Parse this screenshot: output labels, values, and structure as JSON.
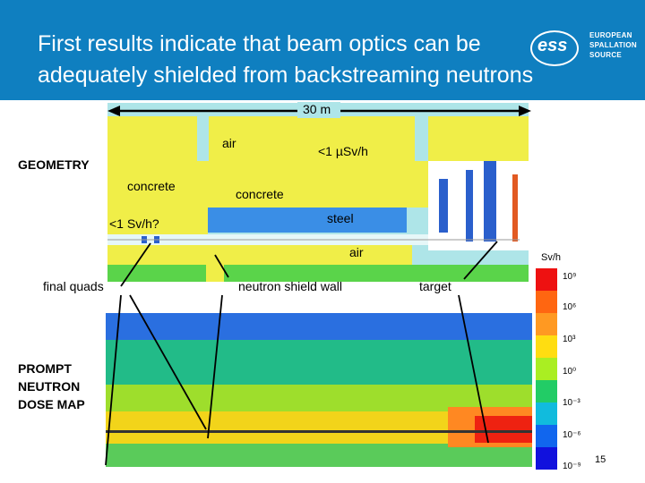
{
  "header": {
    "title": "First results indicate that beam optics can be adequately shielded from backstreaming neutrons",
    "logo": {
      "letters": "ess",
      "text_lines": [
        "EUROPEAN",
        "SPALLATION",
        "SOURCE"
      ]
    }
  },
  "geometry": {
    "section_label": "GEOMETRY",
    "scale_label": "30 m",
    "labels": {
      "air_top": "air",
      "dose_top": "<1 µSv/h",
      "concrete_left": "concrete",
      "concrete_mid": "concrete",
      "dose_quads": "<1 Sv/h?",
      "steel": "steel",
      "air_tunnel": "air",
      "final_quads": "final quads",
      "shield_wall": "neutron shield wall",
      "target": "target"
    }
  },
  "dose_map": {
    "section_label_lines": [
      "PROMPT",
      "NEUTRON",
      "DOSE MAP"
    ]
  },
  "colorbar": {
    "unit": "Sv/h",
    "ticks": [
      "10⁹",
      "10⁶",
      "10³",
      "10⁰",
      "10⁻³",
      "10⁻⁶",
      "10⁻⁹"
    ],
    "colors": [
      "#ee1111",
      "#ff6611",
      "#ff9922",
      "#ffdd11",
      "#aaee22",
      "#22cc66",
      "#11bbdd",
      "#1166ee",
      "#1111dd"
    ]
  },
  "slide_number": "15"
}
